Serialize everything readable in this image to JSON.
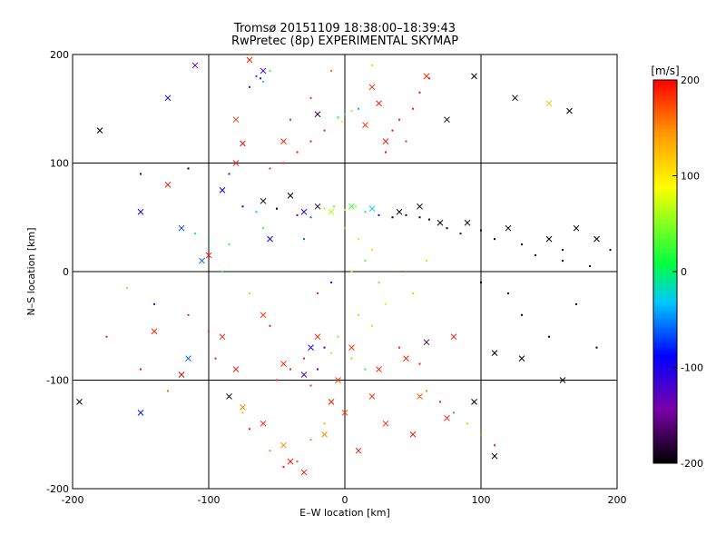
{
  "chart_data": {
    "type": "scatter",
    "title": "Tromsø 20151109 18:38:00–18:39:43",
    "subtitle": "RwPretec (8p) EXPERIMENTAL SKYMAP",
    "xlabel": "E–W location [km]",
    "ylabel": "N–S location [km]",
    "xlim": [
      -200,
      200
    ],
    "ylim": [
      -200,
      200
    ],
    "xticks": [
      -200,
      -100,
      0,
      100,
      200
    ],
    "yticks": [
      -200,
      -100,
      0,
      100,
      200
    ],
    "grid": true,
    "colorbar": {
      "label": "[m/s]",
      "range": [
        -200,
        200
      ],
      "ticks": [
        200,
        100,
        0,
        -100,
        -200
      ],
      "colors": [
        "#000000",
        "#7a00a8",
        "#0000ff",
        "#00c8ff",
        "#00ff40",
        "#ffff00",
        "#ff9900",
        "#ff0000"
      ]
    },
    "series": [
      {
        "marker": "x",
        "points": [
          [
            -60,
            185,
            -110
          ],
          [
            -70,
            195,
            190
          ],
          [
            -110,
            190,
            -150
          ],
          [
            -180,
            130,
            -200
          ],
          [
            -130,
            160,
            -90
          ],
          [
            -80,
            140,
            180
          ],
          [
            -75,
            118,
            195
          ],
          [
            -20,
            145,
            -180
          ],
          [
            25,
            155,
            190
          ],
          [
            60,
            180,
            185
          ],
          [
            75,
            140,
            -190
          ],
          [
            95,
            180,
            -200
          ],
          [
            125,
            160,
            -200
          ],
          [
            150,
            155,
            120
          ],
          [
            165,
            148,
            -200
          ],
          [
            -150,
            55,
            -100
          ],
          [
            -90,
            75,
            -90
          ],
          [
            -60,
            65,
            -200
          ],
          [
            -40,
            70,
            -200
          ],
          [
            -30,
            55,
            -110
          ],
          [
            -20,
            60,
            -180
          ],
          [
            -10,
            55,
            60
          ],
          [
            5,
            60,
            20
          ],
          [
            20,
            58,
            -30
          ],
          [
            40,
            55,
            -200
          ],
          [
            55,
            60,
            -200
          ],
          [
            70,
            45,
            -200
          ],
          [
            90,
            45,
            -190
          ],
          [
            120,
            40,
            -200
          ],
          [
            150,
            30,
            -200
          ],
          [
            170,
            40,
            -200
          ],
          [
            185,
            30,
            -200
          ],
          [
            -120,
            40,
            -70
          ],
          [
            -55,
            30,
            -100
          ],
          [
            -105,
            10,
            -60
          ],
          [
            -130,
            80,
            190
          ],
          [
            20,
            170,
            180
          ],
          [
            30,
            120,
            190
          ],
          [
            15,
            135,
            185
          ],
          [
            -120,
            -95,
            200
          ],
          [
            -140,
            -55,
            190
          ],
          [
            -115,
            -80,
            -60
          ],
          [
            -80,
            -90,
            195
          ],
          [
            -45,
            -85,
            190
          ],
          [
            -20,
            -60,
            190
          ],
          [
            5,
            -70,
            180
          ],
          [
            25,
            -90,
            190
          ],
          [
            45,
            -80,
            185
          ],
          [
            60,
            -65,
            -170
          ],
          [
            80,
            -60,
            195
          ],
          [
            110,
            -75,
            -200
          ],
          [
            130,
            -80,
            -200
          ],
          [
            160,
            -100,
            -200
          ],
          [
            -75,
            -125,
            150
          ],
          [
            -60,
            -140,
            190
          ],
          [
            -45,
            -160,
            150
          ],
          [
            -40,
            -175,
            195
          ],
          [
            -30,
            -185,
            190
          ],
          [
            -15,
            -150,
            150
          ],
          [
            10,
            -165,
            190
          ],
          [
            30,
            -140,
            185
          ],
          [
            50,
            -150,
            195
          ],
          [
            75,
            -135,
            190
          ],
          [
            95,
            -120,
            -200
          ],
          [
            110,
            -170,
            -200
          ],
          [
            -90,
            -60,
            190
          ],
          [
            -60,
            -40,
            185
          ],
          [
            -10,
            -120,
            190
          ],
          [
            0,
            -130,
            175
          ],
          [
            -30,
            -95,
            -120
          ],
          [
            -25,
            -70,
            -100
          ],
          [
            -5,
            -100,
            180
          ],
          [
            20,
            -115,
            185
          ],
          [
            55,
            -115,
            170
          ],
          [
            -85,
            -115,
            -200
          ],
          [
            -195,
            -120,
            -200
          ],
          [
            -150,
            -130,
            -80
          ],
          [
            -100,
            15,
            190
          ],
          [
            -80,
            100,
            190
          ],
          [
            -45,
            120,
            185
          ]
        ]
      },
      {
        "marker": "dot",
        "points": [
          [
            -65,
            180,
            -60
          ],
          [
            -60,
            175,
            -20
          ],
          [
            -70,
            170,
            -150
          ],
          [
            -55,
            185,
            30
          ],
          [
            -62,
            178,
            -120
          ],
          [
            0,
            145,
            20
          ],
          [
            5,
            148,
            60
          ],
          [
            -5,
            142,
            10
          ],
          [
            10,
            150,
            -40
          ],
          [
            -2,
            138,
            100
          ],
          [
            -25,
            120,
            190
          ],
          [
            -35,
            110,
            195
          ],
          [
            -45,
            100,
            190
          ],
          [
            -55,
            95,
            185
          ],
          [
            -15,
            130,
            190
          ],
          [
            35,
            130,
            195
          ],
          [
            40,
            140,
            190
          ],
          [
            45,
            120,
            185
          ],
          [
            30,
            110,
            195
          ],
          [
            50,
            150,
            190
          ],
          [
            55,
            165,
            195
          ],
          [
            62,
            178,
            190
          ],
          [
            -150,
            90,
            -180
          ],
          [
            -115,
            95,
            -200
          ],
          [
            -85,
            90,
            -150
          ],
          [
            -75,
            60,
            -90
          ],
          [
            -65,
            55,
            -30
          ],
          [
            -50,
            58,
            -200
          ],
          [
            -35,
            52,
            -150
          ],
          [
            -25,
            50,
            -60
          ],
          [
            -15,
            58,
            60
          ],
          [
            -8,
            60,
            40
          ],
          [
            0,
            57,
            100
          ],
          [
            8,
            60,
            60
          ],
          [
            15,
            55,
            -10
          ],
          [
            25,
            52,
            -100
          ],
          [
            35,
            50,
            -200
          ],
          [
            45,
            52,
            -200
          ],
          [
            55,
            50,
            -200
          ],
          [
            62,
            48,
            -200
          ],
          [
            75,
            40,
            -200
          ],
          [
            85,
            35,
            -180
          ],
          [
            100,
            38,
            -190
          ],
          [
            110,
            30,
            -200
          ],
          [
            130,
            25,
            -200
          ],
          [
            140,
            15,
            -200
          ],
          [
            160,
            10,
            -200
          ],
          [
            180,
            5,
            -200
          ],
          [
            195,
            20,
            -200
          ],
          [
            -110,
            35,
            0
          ],
          [
            -100,
            30,
            -40
          ],
          [
            -85,
            25,
            20
          ],
          [
            -60,
            40,
            30
          ],
          [
            -30,
            30,
            -60
          ],
          [
            0,
            40,
            140
          ],
          [
            10,
            30,
            60
          ],
          [
            20,
            20,
            110
          ],
          [
            15,
            10,
            30
          ],
          [
            5,
            0,
            100
          ],
          [
            -10,
            -10,
            -80
          ],
          [
            -20,
            -20,
            190
          ],
          [
            25,
            -10,
            40
          ],
          [
            30,
            -30,
            100
          ],
          [
            10,
            -40,
            120
          ],
          [
            20,
            -50,
            60
          ],
          [
            -5,
            -60,
            40
          ],
          [
            5,
            -80,
            130
          ],
          [
            15,
            -90,
            20
          ],
          [
            -30,
            -80,
            190
          ],
          [
            -40,
            -90,
            195
          ],
          [
            -50,
            -100,
            185
          ],
          [
            -25,
            -105,
            180
          ],
          [
            -10,
            -75,
            60
          ],
          [
            -20,
            -90,
            -120
          ],
          [
            -15,
            -70,
            -90
          ],
          [
            40,
            -70,
            190
          ],
          [
            55,
            -85,
            190
          ],
          [
            60,
            -110,
            150
          ],
          [
            70,
            -120,
            185
          ],
          [
            80,
            -130,
            -40
          ],
          [
            90,
            -140,
            120
          ],
          [
            100,
            -150,
            150
          ],
          [
            110,
            -160,
            190
          ],
          [
            -75,
            -130,
            130
          ],
          [
            -70,
            -145,
            190
          ],
          [
            -55,
            -165,
            150
          ],
          [
            -45,
            -180,
            195
          ],
          [
            -35,
            -175,
            170
          ],
          [
            -25,
            -155,
            150
          ],
          [
            -15,
            -140,
            130
          ],
          [
            -95,
            -80,
            190
          ],
          [
            -100,
            -55,
            185
          ],
          [
            -115,
            -40,
            190
          ],
          [
            -140,
            -30,
            -80
          ],
          [
            -160,
            -15,
            50
          ],
          [
            -175,
            -60,
            190
          ],
          [
            -130,
            -110,
            160
          ],
          [
            -150,
            -90,
            195
          ],
          [
            130,
            -40,
            -200
          ],
          [
            150,
            -60,
            -200
          ],
          [
            170,
            -30,
            -200
          ],
          [
            185,
            -70,
            -200
          ],
          [
            120,
            -20,
            -200
          ],
          [
            100,
            -10,
            -200
          ],
          [
            160,
            20,
            -200
          ],
          [
            -90,
            0,
            20
          ],
          [
            -70,
            -20,
            120
          ],
          [
            -55,
            -50,
            190
          ],
          [
            45,
            0,
            160
          ],
          [
            50,
            -20,
            120
          ],
          [
            60,
            10,
            110
          ],
          [
            -25,
            160,
            185
          ],
          [
            20,
            190,
            120
          ],
          [
            -10,
            185,
            160
          ],
          [
            -40,
            140,
            190
          ]
        ]
      }
    ]
  }
}
